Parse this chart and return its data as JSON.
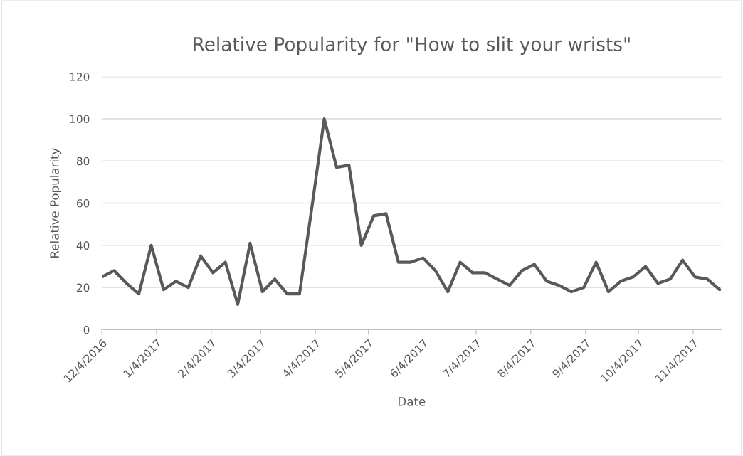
{
  "chart_data": {
    "type": "line",
    "title": "Relative Popularity for \"How to slit your wrists\"",
    "xlabel": "Date",
    "ylabel": "Relative Popularity",
    "x": [
      "2016-12-04",
      "2016-12-11",
      "2016-12-18",
      "2016-12-25",
      "2017-01-01",
      "2017-01-08",
      "2017-01-15",
      "2017-01-22",
      "2017-01-29",
      "2017-02-05",
      "2017-02-12",
      "2017-02-19",
      "2017-02-26",
      "2017-03-05",
      "2017-03-12",
      "2017-03-19",
      "2017-03-26",
      "2017-04-02",
      "2017-04-09",
      "2017-04-16",
      "2017-04-23",
      "2017-04-30",
      "2017-05-07",
      "2017-05-14",
      "2017-05-21",
      "2017-05-28",
      "2017-06-04",
      "2017-06-11",
      "2017-06-18",
      "2017-06-25",
      "2017-07-02",
      "2017-07-09",
      "2017-07-16",
      "2017-07-23",
      "2017-07-30",
      "2017-08-06",
      "2017-08-13",
      "2017-08-20",
      "2017-08-27",
      "2017-09-03",
      "2017-09-10",
      "2017-09-17",
      "2017-09-24",
      "2017-10-01",
      "2017-10-08",
      "2017-10-15",
      "2017-10-22",
      "2017-10-29",
      "2017-11-05",
      "2017-11-12",
      "2017-11-19"
    ],
    "series": [
      {
        "color": "#595959",
        "values": [
          25,
          28,
          22,
          17,
          40,
          19,
          23,
          20,
          35,
          27,
          32,
          12,
          41,
          18,
          24,
          17,
          17,
          58,
          100,
          77,
          78,
          40,
          54,
          55,
          32,
          32,
          34,
          28,
          18,
          32,
          27,
          27,
          24,
          21,
          28,
          31,
          23,
          21,
          18,
          20,
          32,
          18,
          23,
          25,
          30,
          22,
          24,
          33,
          25,
          24,
          19
        ]
      }
    ],
    "xlim": [
      "2016-12-04",
      "2017-11-20"
    ],
    "xticks": [
      {
        "value": "2016-12-04",
        "label": "12/4/2016"
      },
      {
        "value": "2017-01-04",
        "label": "1/4/2017"
      },
      {
        "value": "2017-02-04",
        "label": "2/4/2017"
      },
      {
        "value": "2017-03-04",
        "label": "3/4/2017"
      },
      {
        "value": "2017-04-04",
        "label": "4/4/2017"
      },
      {
        "value": "2017-05-04",
        "label": "5/4/2017"
      },
      {
        "value": "2017-06-04",
        "label": "6/4/2017"
      },
      {
        "value": "2017-07-04",
        "label": "7/4/2017"
      },
      {
        "value": "2017-08-04",
        "label": "8/4/2017"
      },
      {
        "value": "2017-09-04",
        "label": "9/4/2017"
      },
      {
        "value": "2017-10-04",
        "label": "10/4/2017"
      },
      {
        "value": "2017-11-04",
        "label": "11/4/2017"
      }
    ],
    "ylim": [
      0,
      120
    ],
    "yticks": [
      0,
      20,
      40,
      60,
      80,
      100,
      120
    ],
    "grid": "y"
  }
}
